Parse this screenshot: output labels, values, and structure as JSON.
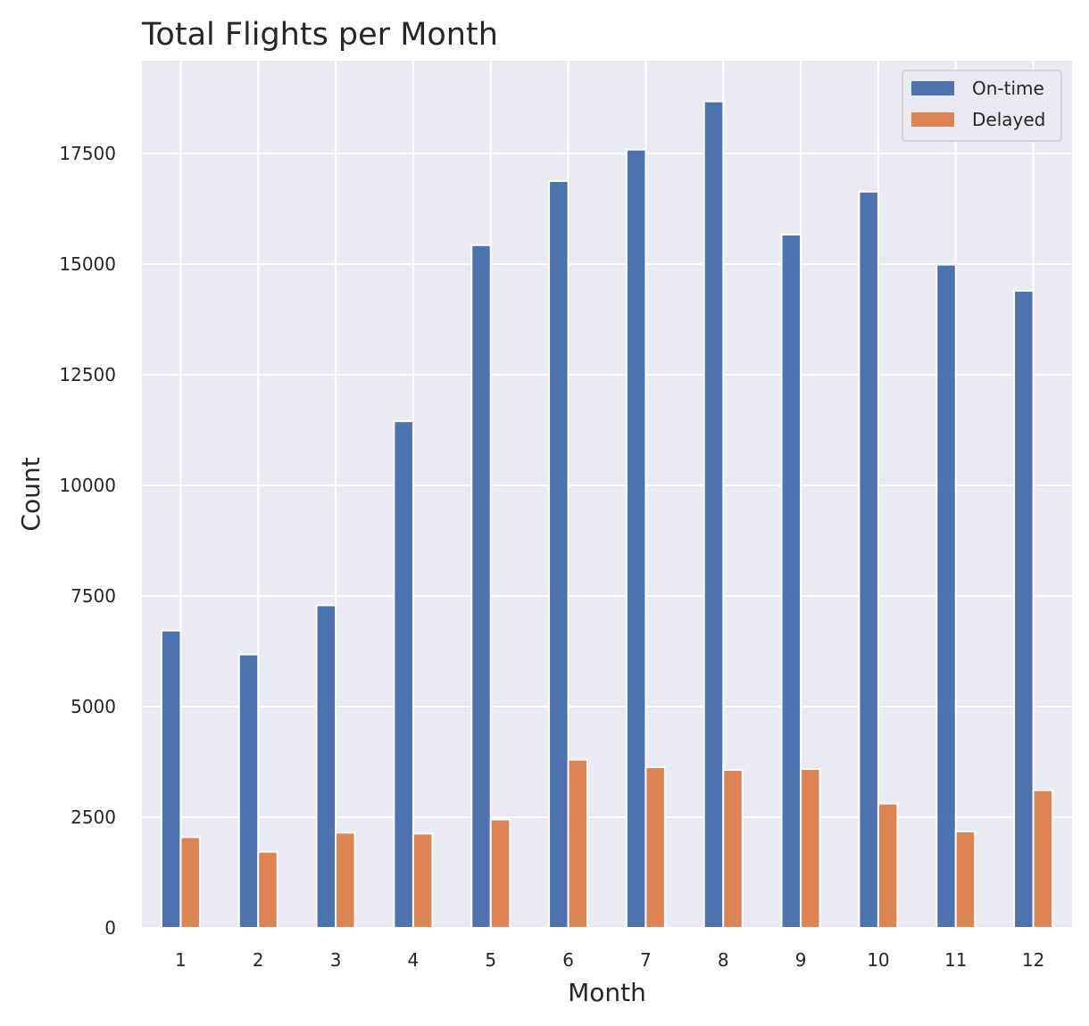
{
  "chart_data": {
    "type": "bar",
    "title": "Total Flights per Month",
    "xlabel": "Month",
    "ylabel": "Count",
    "categories": [
      "1",
      "2",
      "3",
      "4",
      "5",
      "6",
      "7",
      "8",
      "9",
      "10",
      "11",
      "12"
    ],
    "series": [
      {
        "name": "On-time",
        "color": "#4c72b0",
        "values": [
          6720,
          6180,
          7290,
          11450,
          15430,
          16880,
          17590,
          18680,
          15670,
          16640,
          14990,
          14400
        ]
      },
      {
        "name": "Delayed",
        "color": "#dd8452",
        "values": [
          2050,
          1720,
          2150,
          2130,
          2450,
          3800,
          3630,
          3570,
          3590,
          2810,
          2180,
          3110
        ]
      }
    ],
    "yticks": [
      0,
      2500,
      5000,
      7500,
      10000,
      12500,
      15000,
      17500
    ],
    "ylim": [
      0,
      19600
    ],
    "grid": true,
    "legend": "top-right",
    "colors": {
      "background": "#eaeaf2",
      "grid": "#ffffff",
      "text": "#262626"
    }
  }
}
